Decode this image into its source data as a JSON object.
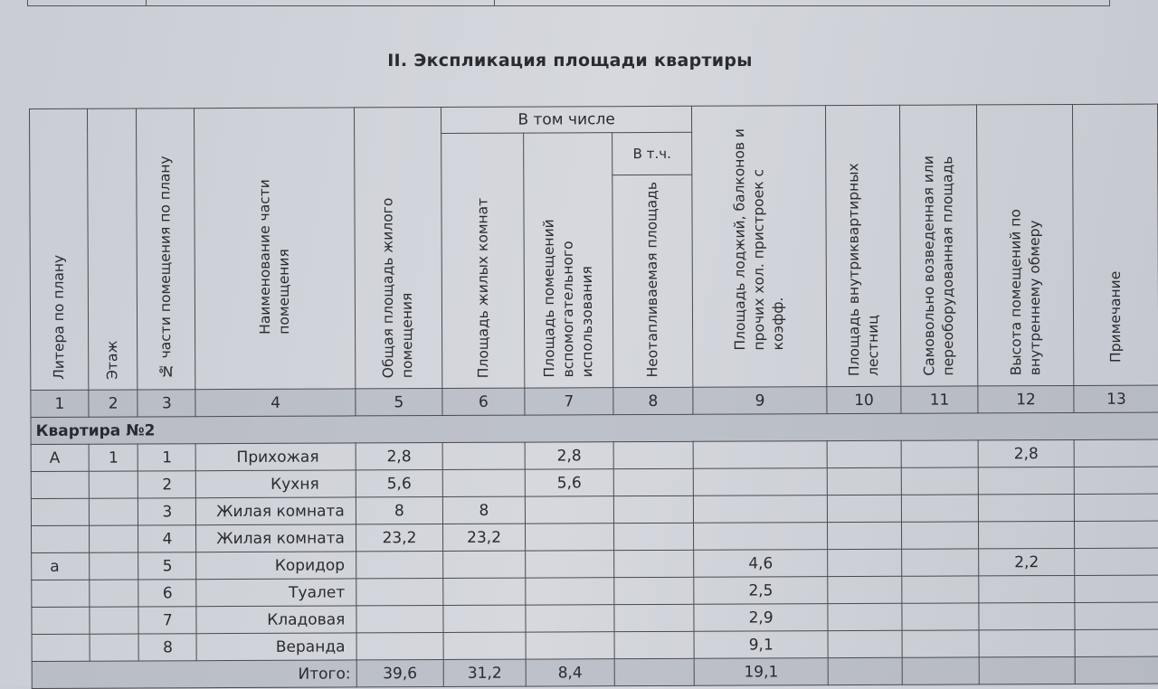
{
  "title": "II. Экспликация площади квартиры",
  "headers": {
    "c1": "Литера по плану",
    "c2": "Этаж",
    "c3": "№ части помещения по плану",
    "c4": "Наименование части помещения",
    "c5": "Общая площадь жилого помещения",
    "group": "В том числе",
    "c6": "Площадь жилых комнат",
    "c7": "Площадь помещений вспомогательного использования",
    "subgroup": "В т.ч.",
    "c8": "Неотапливаемая площадь",
    "c9": "Площадь лоджий, балконов и прочих хол. пристроек с коэфф.",
    "c10": "Площадь внутриквартирных лестниц",
    "c11": "Самовольно возведенная или переоборудованная площадь",
    "c12": "Высота помещений по внутреннему обмеру",
    "c13": "Примечание"
  },
  "column_numbers": [
    "1",
    "2",
    "3",
    "4",
    "5",
    "6",
    "7",
    "8",
    "9",
    "10",
    "11",
    "12",
    "13"
  ],
  "section": "Квартира №2",
  "rows": [
    [
      "А",
      "1",
      "1",
      "Прихожая",
      "2,8",
      "",
      "2,8",
      "",
      "",
      "",
      "",
      "2,8",
      ""
    ],
    [
      "",
      "",
      "2",
      "Кухня",
      "5,6",
      "",
      "5,6",
      "",
      "",
      "",
      "",
      "",
      ""
    ],
    [
      "",
      "",
      "3",
      "Жилая комната",
      "8",
      "8",
      "",
      "",
      "",
      "",
      "",
      "",
      ""
    ],
    [
      "",
      "",
      "4",
      "Жилая комната",
      "23,2",
      "23,2",
      "",
      "",
      "",
      "",
      "",
      "",
      ""
    ],
    [
      "а",
      "",
      "5",
      "Коридор",
      "",
      "",
      "",
      "",
      "4,6",
      "",
      "",
      "2,2",
      ""
    ],
    [
      "",
      "",
      "6",
      "Туалет",
      "",
      "",
      "",
      "",
      "2,5",
      "",
      "",
      "",
      ""
    ],
    [
      "",
      "",
      "7",
      "Кладовая",
      "",
      "",
      "",
      "",
      "2,9",
      "",
      "",
      "",
      ""
    ],
    [
      "",
      "",
      "8",
      "Веранда",
      "",
      "",
      "",
      "",
      "9,1",
      "",
      "",
      "",
      ""
    ]
  ],
  "total": {
    "label": "Итого:",
    "c5": "39,6",
    "c6": "31,2",
    "c7": "8,4",
    "c8": "",
    "c9": "19,1",
    "c10": "",
    "c11": "",
    "c12": "",
    "c13": ""
  }
}
